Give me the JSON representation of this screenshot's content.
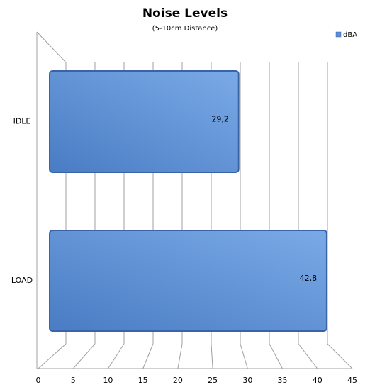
{
  "chart_data": {
    "type": "bar",
    "orientation": "horizontal",
    "title": "Noise Levels",
    "subtitle": "(5-10cm Distance)",
    "categories": [
      "IDLE",
      "LOAD"
    ],
    "series": [
      {
        "name": "dBA",
        "color": "#5b8fd4",
        "values": [
          29.2,
          42.8
        ],
        "value_labels": [
          "29,2",
          "42,8"
        ]
      }
    ],
    "xlim": [
      0,
      45
    ],
    "xticks": [
      0,
      5,
      10,
      15,
      20,
      25,
      30,
      35,
      40,
      45
    ],
    "grid": true,
    "legend": "top-right"
  }
}
